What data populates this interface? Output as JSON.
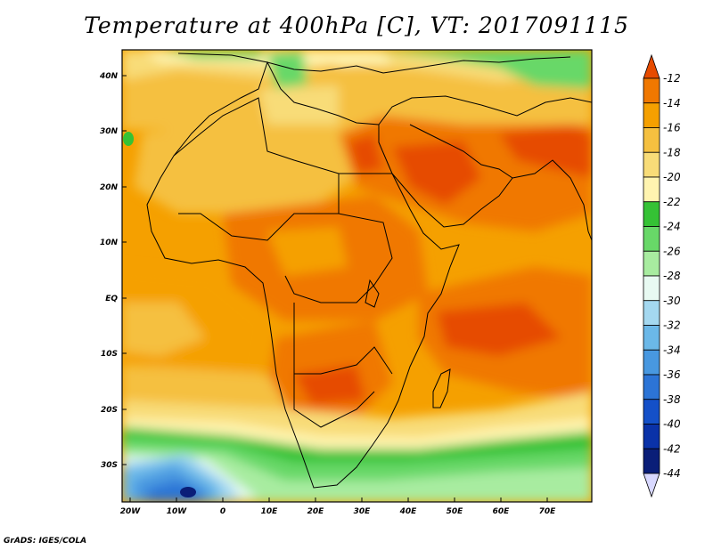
{
  "title": "Temperature at 400hPa [C], VT: 2017091115",
  "footer": "GrADS: IGES/COLA",
  "map": {
    "lat_labels": [
      "40N",
      "30N",
      "20N",
      "10N",
      "EQ",
      "10S",
      "20S",
      "30S"
    ],
    "lon_labels": [
      "20W",
      "10W",
      "0",
      "10E",
      "20E",
      "30E",
      "40E",
      "50E",
      "60E",
      "70E"
    ],
    "lon_range": [
      "20W",
      "80E"
    ],
    "lat_range": [
      "36S",
      "45N"
    ]
  },
  "colorbar": {
    "labels": [
      "-12",
      "-14",
      "-16",
      "-18",
      "-20",
      "-22",
      "-24",
      "-26",
      "-28",
      "-30",
      "-32",
      "-34",
      "-36",
      "-38",
      "-40",
      "-42",
      "-44"
    ],
    "colors": [
      "#e64b00",
      "#f07800",
      "#f5a000",
      "#f5c040",
      "#f8dc78",
      "#fff4b0",
      "#35c235",
      "#68d868",
      "#a8eca0",
      "#e8faf2",
      "#a4d8f0",
      "#6bb8e8",
      "#4898e0",
      "#2c74d6",
      "#1450c8",
      "#0a32a8",
      "#0a1e78",
      "#d8d8ff"
    ]
  }
}
